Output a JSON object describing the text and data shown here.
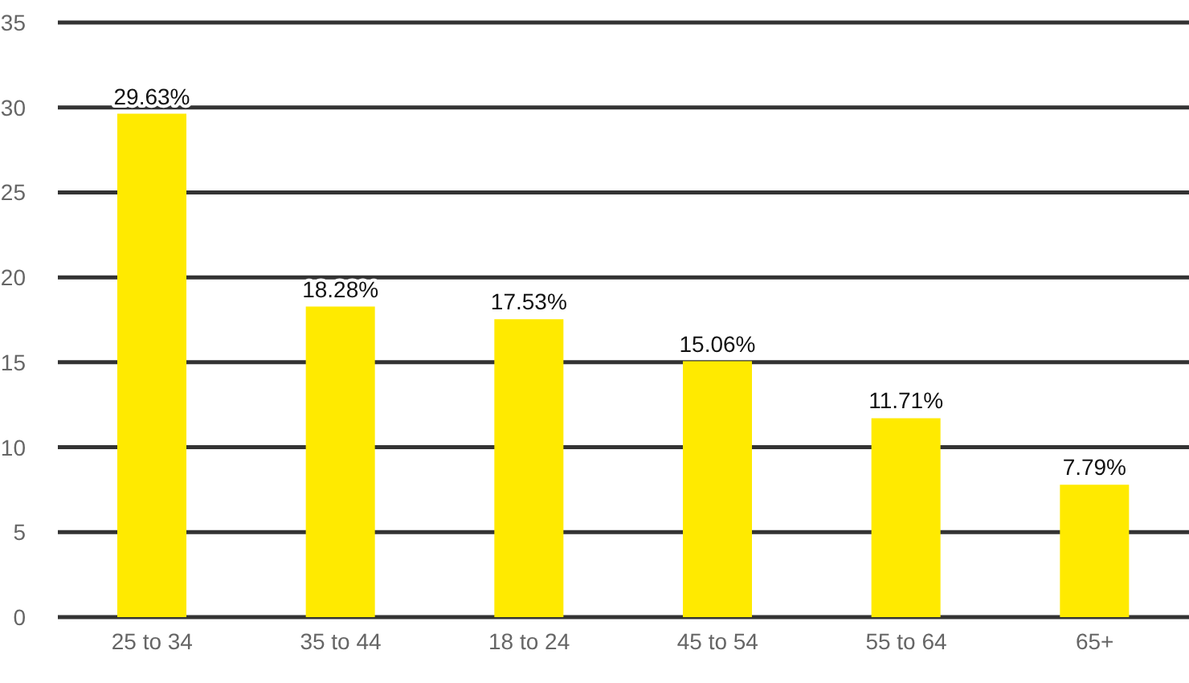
{
  "chart_data": {
    "type": "bar",
    "categories": [
      "25 to 34",
      "35 to 44",
      "18 to 24",
      "45 to 54",
      "55 to 64",
      "65+"
    ],
    "values": [
      29.63,
      18.28,
      17.53,
      15.06,
      11.71,
      7.79
    ],
    "color": "#ffea00",
    "value_labels": [
      "29.63%",
      "18.28%",
      "17.53%",
      "15.06%",
      "11.71%",
      "7.79%"
    ],
    "ylim": [
      0,
      35
    ],
    "yticks": [
      0,
      5,
      10,
      15,
      20,
      25,
      30,
      35
    ],
    "grid": "y"
  }
}
